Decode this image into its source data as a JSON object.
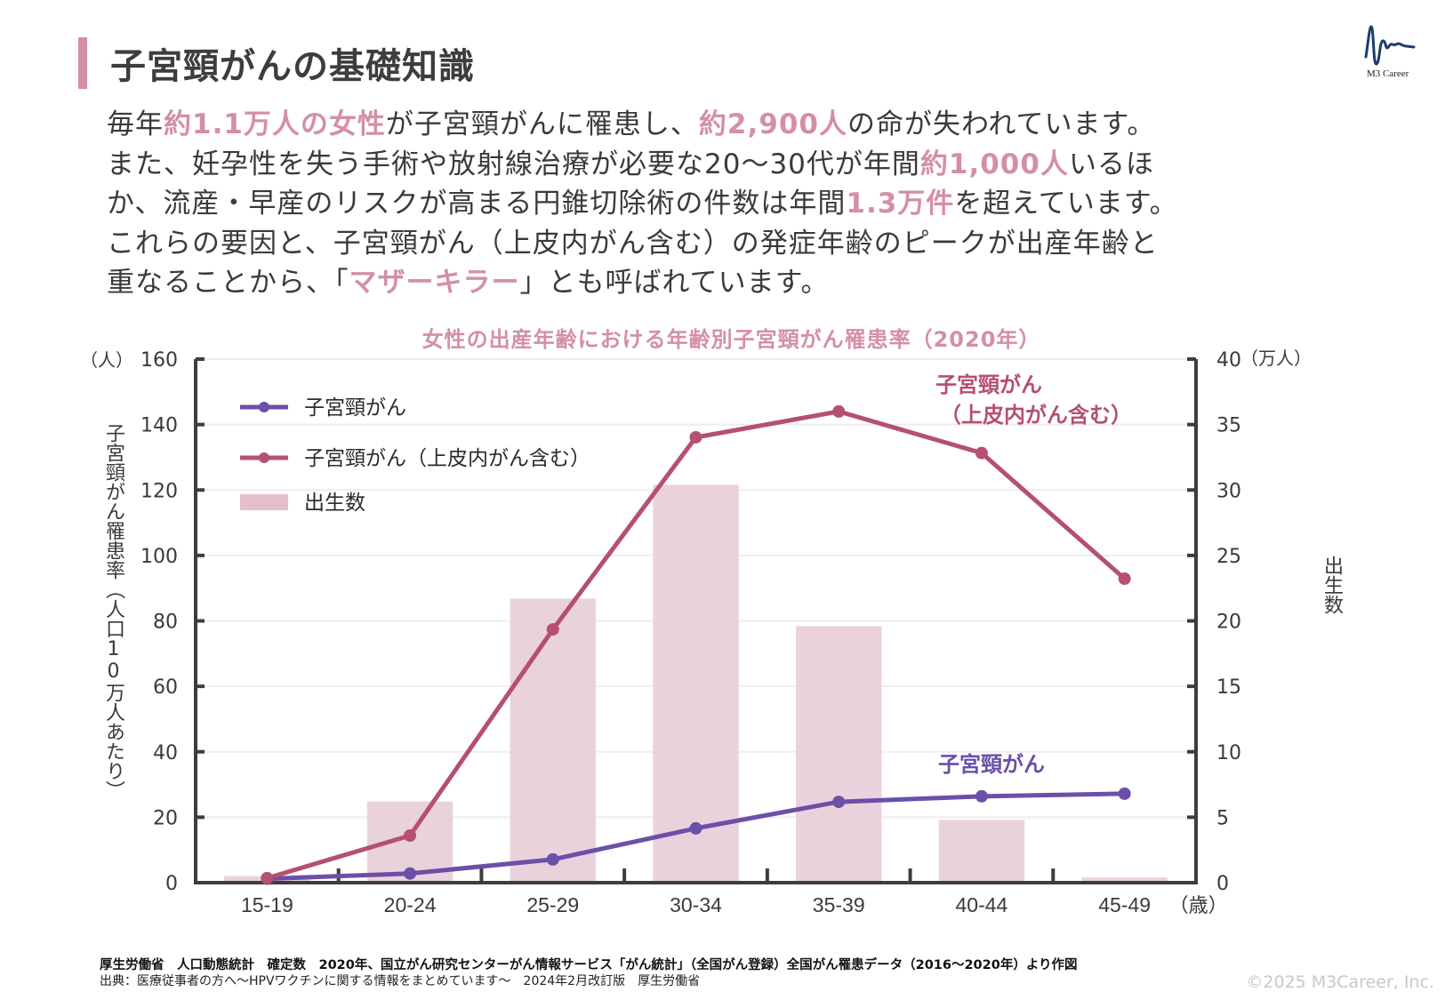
{
  "header": {
    "title": "子宮頸がんの基礎知識",
    "logo_text": "M3 Career"
  },
  "body": {
    "paragraph": [
      {
        "t": "毎年",
        "hl": false
      },
      {
        "t": "約1.1万人の女性",
        "hl": true
      },
      {
        "t": "が子宮頸がんに罹患し、",
        "hl": false
      },
      {
        "t": "約2,900人",
        "hl": true
      },
      {
        "t": "の命が失われています。",
        "hl": false
      },
      {
        "t": "\n",
        "hl": false
      },
      {
        "t": "また、妊孕性を失う手術や放射線治療が必要な20～30代が年間",
        "hl": false
      },
      {
        "t": "約1,000人",
        "hl": true
      },
      {
        "t": "いるほ",
        "hl": false
      },
      {
        "t": "\n",
        "hl": false
      },
      {
        "t": "か、流産・早産のリスクが高まる円錐切除術の件数は年間",
        "hl": false
      },
      {
        "t": "1.3万件",
        "hl": true
      },
      {
        "t": "を超えています。",
        "hl": false
      },
      {
        "t": "\n",
        "hl": false
      },
      {
        "t": "これらの要因と、子宮頸がん（上皮内がん含む）の発症年齢のピークが出産年齢と",
        "hl": false
      },
      {
        "t": "\n",
        "hl": false
      },
      {
        "t": "重なることから、「",
        "hl": false
      },
      {
        "t": "マザーキラー",
        "hl": true
      },
      {
        "t": "」とも呼ばれています。",
        "hl": false
      }
    ]
  },
  "colors": {
    "accent_pink": "#d48fa6",
    "line_purple": "#6b4fa8",
    "line_magenta": "#b5506f",
    "bar_pink": "#ead2dc",
    "axis": "#3d3d3d",
    "grid": "#eeeeee"
  },
  "chart_data": {
    "type": "bar+line",
    "title": "女性の出産年齢における年齢別子宮頸がん罹患率（2020年）",
    "categories": [
      "15-19",
      "20-24",
      "25-29",
      "30-34",
      "35-39",
      "40-44",
      "45-49"
    ],
    "x_unit": "（歳）",
    "y_left": {
      "label": "子宮頸がん罹患率（人口10万人あたり）",
      "unit": "（人）",
      "range": [
        0,
        160
      ],
      "ticks": [
        0,
        20,
        40,
        60,
        80,
        100,
        120,
        140,
        160
      ]
    },
    "y_right": {
      "label": "出生数",
      "unit": "（万人）",
      "range": [
        0,
        40
      ],
      "ticks": [
        0,
        5,
        10,
        15,
        20,
        25,
        30,
        35,
        40
      ]
    },
    "series": [
      {
        "name": "子宮頸がん",
        "type": "line",
        "axis": "left",
        "color": "#6b4fa8",
        "values": [
          1.2,
          2.8,
          7.1,
          16.6,
          24.7,
          26.4,
          27.2
        ],
        "annotation": "子宮頸がん"
      },
      {
        "name": "子宮頸がん（上皮内がん含む）",
        "type": "line",
        "axis": "left",
        "color": "#b5506f",
        "values": [
          1.4,
          14.4,
          77.4,
          136.1,
          144.0,
          131.3,
          92.9
        ],
        "annotation_lines": [
          "子宮頸がん",
          "（上皮内がん含む）"
        ]
      },
      {
        "name": "出生数",
        "type": "bar",
        "axis": "right",
        "color": "#ead2dc",
        "values": [
          0.5,
          6.2,
          21.7,
          30.4,
          19.6,
          4.8,
          0.4
        ]
      }
    ],
    "legend": [
      "子宮頸がん",
      "子宮頸がん（上皮内がん含む）",
      "出生数"
    ],
    "legend_position": "top-left",
    "grid": true
  },
  "footer": {
    "source_line1": "厚生労働省　人口動態統計　確定数　2020年、国立がん研究センターがん情報サービス「がん統計」（全国がん登録）全国がん罹患データ（2016～2020年）より作図",
    "source_line2": "出典：医療従事者の方へ～HPVワクチンに関する情報をまとめています～　2024年2月改訂版　厚生労働省",
    "copyright": "©2025 M3Career, Inc."
  }
}
